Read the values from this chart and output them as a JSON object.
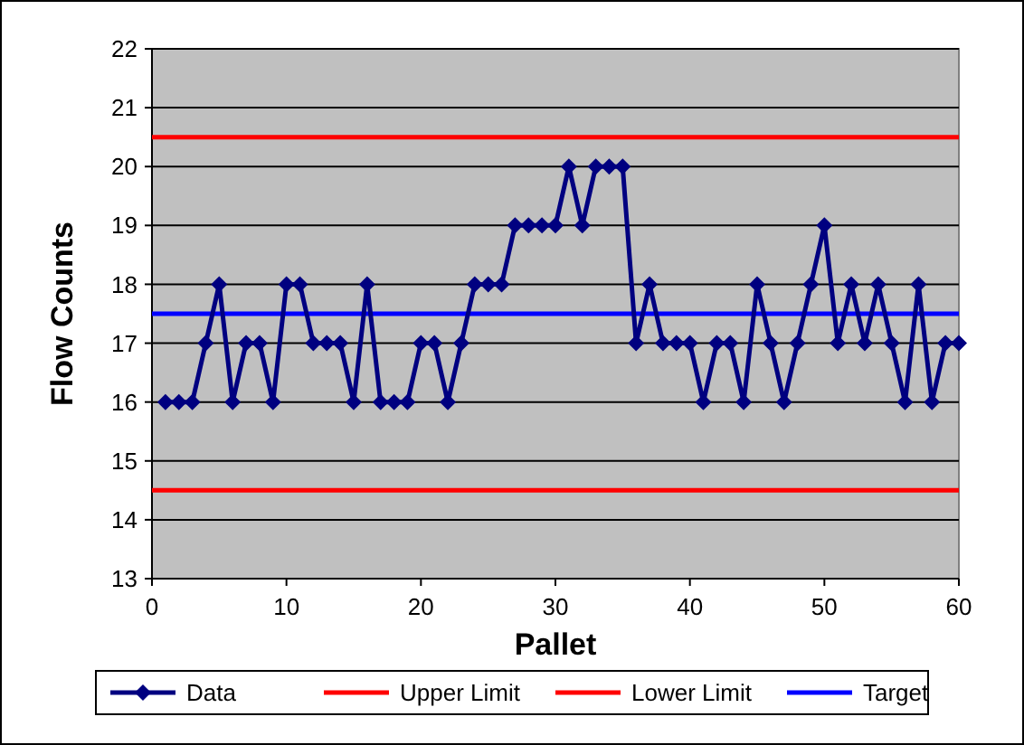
{
  "chart_data": {
    "type": "line",
    "xlabel": "Pallet",
    "ylabel": "Flow Counts",
    "xlim": [
      0,
      60
    ],
    "xticks": [
      0,
      10,
      20,
      30,
      40,
      50,
      60
    ],
    "ylim": [
      13,
      22
    ],
    "yticks": [
      13,
      14,
      15,
      16,
      17,
      18,
      19,
      20,
      21,
      22
    ],
    "grid": "y",
    "legend": "bottom",
    "x": [
      1,
      2,
      3,
      4,
      5,
      6,
      7,
      8,
      9,
      10,
      11,
      12,
      13,
      14,
      15,
      16,
      17,
      18,
      19,
      20,
      21,
      22,
      23,
      24,
      25,
      26,
      27,
      28,
      29,
      30,
      31,
      32,
      33,
      34,
      35,
      36,
      37,
      38,
      39,
      40,
      41,
      42,
      43,
      44,
      45,
      46,
      47,
      48,
      49,
      50,
      51,
      52,
      53,
      54,
      55,
      56,
      57,
      58,
      59,
      60
    ],
    "series": [
      {
        "name": "Data",
        "color": "#000080",
        "marker": "diamond",
        "values": [
          16,
          16,
          16,
          17,
          18,
          16,
          17,
          17,
          16,
          18,
          18,
          17,
          17,
          17,
          16,
          18,
          16,
          16,
          16,
          17,
          17,
          16,
          17,
          18,
          18,
          18,
          19,
          19,
          19,
          19,
          20,
          19,
          20,
          20,
          20,
          17,
          18,
          17,
          17,
          17,
          16,
          17,
          17,
          16,
          18,
          17,
          16,
          17,
          18,
          19,
          17,
          18,
          17,
          18,
          17,
          16,
          18,
          16,
          17,
          17
        ]
      }
    ],
    "ref_lines": [
      {
        "axis": "y",
        "value": 20.5,
        "label": "Upper Limit",
        "color": "#ff0000"
      },
      {
        "axis": "y",
        "value": 14.5,
        "label": "Lower Limit",
        "color": "#ff0000"
      },
      {
        "axis": "y",
        "value": 17.5,
        "label": "Target",
        "color": "#0000ff"
      }
    ]
  }
}
